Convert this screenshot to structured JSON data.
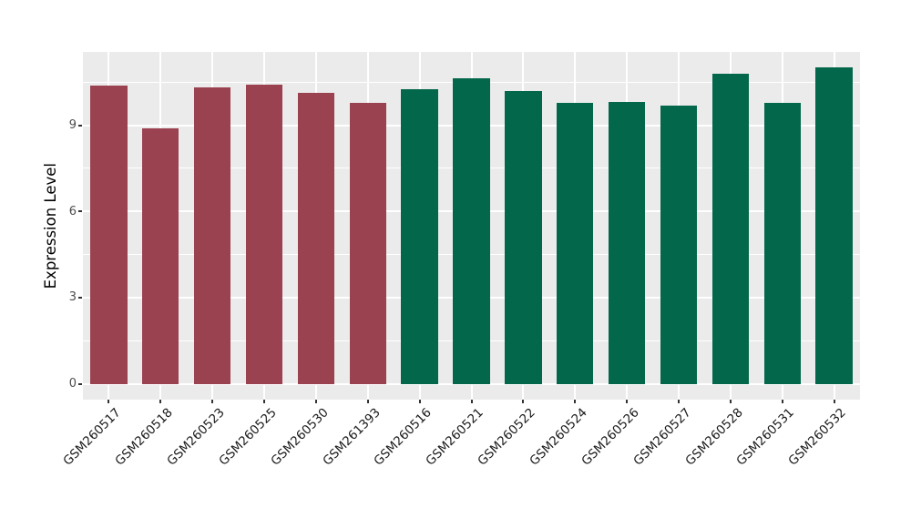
{
  "chart_data": {
    "type": "bar",
    "title": "",
    "xlabel": "",
    "ylabel": "Expression Level",
    "categories": [
      "GSM260517",
      "GSM260518",
      "GSM260523",
      "GSM260525",
      "GSM260530",
      "GSM261393",
      "GSM260516",
      "GSM260521",
      "GSM260522",
      "GSM260524",
      "GSM260526",
      "GSM260527",
      "GSM260528",
      "GSM260531",
      "GSM260532"
    ],
    "values": [
      10.37,
      8.9,
      10.32,
      10.4,
      10.12,
      9.77,
      10.24,
      10.63,
      10.2,
      9.77,
      9.82,
      9.67,
      10.79,
      9.78,
      11.01
    ],
    "bar_groups": [
      "group1",
      "group1",
      "group1",
      "group1",
      "group1",
      "group1",
      "group2",
      "group2",
      "group2",
      "group2",
      "group2",
      "group2",
      "group2",
      "group2",
      "group2"
    ],
    "group_colors": {
      "group1": "#9B4250",
      "group2": "#03684B"
    },
    "yticks": [
      0,
      3,
      6,
      9
    ],
    "minor_yticks": [
      1.5,
      4.5,
      7.5,
      10.5
    ],
    "ylim": [
      -0.55,
      11.55
    ],
    "bar_width_frac": 0.71,
    "grid": true,
    "legend": "none",
    "colors": {
      "panel_bg": "#EBEBEB",
      "grid": "#FFFFFF",
      "y_tick_label": "#4D4D4D",
      "x_tick_label": "#1A1A1A",
      "tick_mark": "#333333",
      "axis_title": "#000000",
      "figure_bg": "#FFFFFF"
    }
  }
}
